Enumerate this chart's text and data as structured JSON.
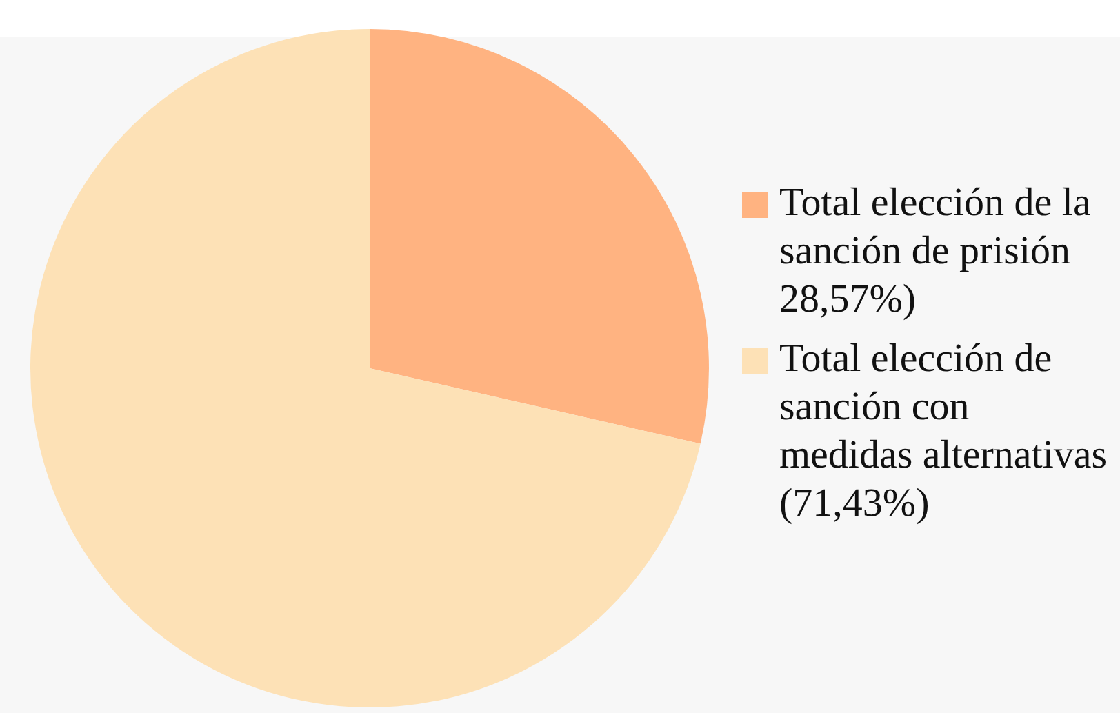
{
  "chart_data": {
    "type": "pie",
    "categories": [
      "Total elección de la sanción de prisión 28,57%)",
      "Total elección de sanción con medidas alternativas (71,43%)"
    ],
    "values": [
      28.57,
      71.43
    ],
    "colors": [
      "#ffb381",
      "#fde1b6"
    ],
    "legend": "right"
  }
}
